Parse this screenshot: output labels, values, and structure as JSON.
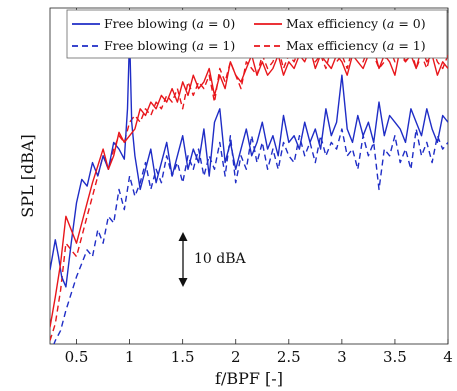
{
  "chart_data": {
    "type": "line",
    "xlabel": "f/BPF [-]",
    "ylabel": "SPL [dBA]",
    "xlim": [
      0.25,
      4.0
    ],
    "ylim": [
      0,
      100
    ],
    "xticks": [
      "0.5",
      "1",
      "1.5",
      "2",
      "2.5",
      "3",
      "3.5",
      "4"
    ],
    "grid": false,
    "legend_position": "top",
    "annotation": "10 dBA",
    "series": [
      {
        "name": "Free blowing (a = 0)",
        "label_prefix": "Free blowing (",
        "label_var": "a",
        "label_suffix": " = 0)",
        "color": "#1f2dc6",
        "dash": "solid",
        "x": [
          0.25,
          0.3,
          0.33,
          0.36,
          0.4,
          0.45,
          0.5,
          0.55,
          0.6,
          0.65,
          0.7,
          0.75,
          0.8,
          0.85,
          0.9,
          0.95,
          0.98,
          1.0,
          1.02,
          1.05,
          1.1,
          1.15,
          1.2,
          1.25,
          1.3,
          1.35,
          1.4,
          1.45,
          1.5,
          1.55,
          1.6,
          1.65,
          1.7,
          1.75,
          1.8,
          1.85,
          1.9,
          1.95,
          2.0,
          2.05,
          2.1,
          2.15,
          2.2,
          2.25,
          2.3,
          2.35,
          2.4,
          2.45,
          2.5,
          2.55,
          2.6,
          2.65,
          2.7,
          2.75,
          2.8,
          2.85,
          2.9,
          2.95,
          3.0,
          3.05,
          3.1,
          3.15,
          3.2,
          3.25,
          3.3,
          3.35,
          3.4,
          3.45,
          3.5,
          3.55,
          3.6,
          3.65,
          3.7,
          3.75,
          3.8,
          3.85,
          3.9,
          3.95,
          4.0
        ],
        "y": [
          22,
          31,
          26,
          20,
          17,
          30,
          42,
          49,
          47,
          54,
          50,
          56,
          52,
          60,
          58,
          55,
          70,
          92,
          66,
          56,
          46,
          52,
          58,
          48,
          54,
          60,
          50,
          56,
          62,
          52,
          58,
          54,
          64,
          50,
          66,
          70,
          54,
          60,
          52,
          58,
          64,
          56,
          60,
          66,
          58,
          62,
          56,
          68,
          60,
          62,
          58,
          66,
          60,
          64,
          58,
          70,
          62,
          66,
          80,
          64,
          60,
          68,
          62,
          66,
          60,
          72,
          62,
          68,
          66,
          64,
          60,
          70,
          66,
          62,
          70,
          64,
          60,
          68,
          66
        ]
      },
      {
        "name": "Max efficiency (a = 0)",
        "label_prefix": "Max efficiency (",
        "label_var": "a",
        "label_suffix": " = 0)",
        "color": "#e8161b",
        "dash": "solid",
        "x": [
          0.25,
          0.3,
          0.35,
          0.4,
          0.45,
          0.5,
          0.55,
          0.6,
          0.65,
          0.7,
          0.75,
          0.8,
          0.85,
          0.9,
          0.95,
          1.0,
          1.05,
          1.1,
          1.15,
          1.2,
          1.25,
          1.3,
          1.35,
          1.4,
          1.45,
          1.5,
          1.55,
          1.6,
          1.65,
          1.7,
          1.75,
          1.8,
          1.85,
          1.9,
          1.95,
          2.0,
          2.05,
          2.1,
          2.15,
          2.2,
          2.25,
          2.3,
          2.35,
          2.4,
          2.45,
          2.5,
          2.55,
          2.6,
          2.65,
          2.7,
          2.75,
          2.8,
          2.85,
          2.9,
          2.95,
          3.0,
          3.05,
          3.1,
          3.15,
          3.2,
          3.25,
          3.3,
          3.35,
          3.4,
          3.45,
          3.5,
          3.55,
          3.6,
          3.65,
          3.7,
          3.75,
          3.8,
          3.85,
          3.9,
          3.95,
          4.0
        ],
        "y": [
          5,
          14,
          24,
          38,
          34,
          30,
          36,
          42,
          48,
          53,
          58,
          52,
          56,
          63,
          60,
          62,
          64,
          70,
          68,
          72,
          70,
          74,
          72,
          76,
          72,
          78,
          74,
          80,
          76,
          78,
          82,
          74,
          80,
          76,
          84,
          80,
          78,
          82,
          86,
          80,
          84,
          80,
          82,
          86,
          80,
          84,
          82,
          86,
          84,
          88,
          82,
          86,
          84,
          82,
          86,
          84,
          80,
          86,
          84,
          82,
          86,
          88,
          82,
          86,
          84,
          80,
          88,
          84,
          86,
          82,
          88,
          84,
          86,
          80,
          84,
          82
        ]
      },
      {
        "name": "Free blowing (a = 1)",
        "label_prefix": "Free blowing (",
        "label_var": "a",
        "label_suffix": " = 1)",
        "color": "#1f2dc6",
        "dash": "dashed",
        "x": [
          0.25,
          0.3,
          0.35,
          0.4,
          0.45,
          0.5,
          0.55,
          0.6,
          0.65,
          0.7,
          0.75,
          0.8,
          0.85,
          0.9,
          0.95,
          1.0,
          1.05,
          1.1,
          1.15,
          1.2,
          1.25,
          1.3,
          1.35,
          1.4,
          1.45,
          1.5,
          1.55,
          1.6,
          1.65,
          1.7,
          1.75,
          1.8,
          1.85,
          1.9,
          1.95,
          2.0,
          2.05,
          2.1,
          2.15,
          2.2,
          2.25,
          2.3,
          2.35,
          2.4,
          2.45,
          2.5,
          2.55,
          2.6,
          2.65,
          2.7,
          2.75,
          2.8,
          2.85,
          2.9,
          2.95,
          3.0,
          3.05,
          3.1,
          3.15,
          3.2,
          3.25,
          3.3,
          3.35,
          3.4,
          3.45,
          3.5,
          3.55,
          3.6,
          3.65,
          3.7,
          3.75,
          3.8,
          3.85,
          3.9,
          3.95,
          4.0
        ],
        "y": [
          -3,
          1,
          4,
          10,
          15,
          20,
          24,
          28,
          26,
          34,
          30,
          38,
          36,
          46,
          40,
          50,
          44,
          48,
          54,
          46,
          52,
          48,
          56,
          50,
          54,
          48,
          56,
          52,
          58,
          50,
          56,
          52,
          60,
          50,
          62,
          48,
          56,
          52,
          62,
          54,
          60,
          52,
          58,
          52,
          60,
          56,
          54,
          62,
          56,
          60,
          54,
          62,
          56,
          60,
          58,
          64,
          56,
          58,
          52,
          62,
          56,
          60,
          46,
          58,
          56,
          62,
          54,
          58,
          52,
          64,
          56,
          60,
          54,
          62,
          58,
          60
        ]
      },
      {
        "name": "Max efficiency (a = 1)",
        "label_prefix": "Max efficiency (",
        "label_var": "a",
        "label_suffix": " = 1)",
        "color": "#e8161b",
        "dash": "dashed",
        "x": [
          0.25,
          0.3,
          0.35,
          0.4,
          0.45,
          0.5,
          0.55,
          0.6,
          0.65,
          0.7,
          0.75,
          0.8,
          0.85,
          0.9,
          0.95,
          1.0,
          1.05,
          1.1,
          1.15,
          1.2,
          1.25,
          1.3,
          1.35,
          1.4,
          1.45,
          1.5,
          1.55,
          1.6,
          1.65,
          1.7,
          1.75,
          1.8,
          1.85,
          1.9,
          1.95,
          2.0,
          2.05,
          2.1,
          2.15,
          2.2,
          2.25,
          2.3,
          2.35,
          2.4,
          2.45,
          2.5,
          2.55,
          2.6,
          2.65,
          2.7,
          2.75,
          2.8,
          2.85,
          2.9,
          2.95,
          3.0,
          3.05,
          3.1,
          3.15,
          3.2,
          3.25,
          3.3,
          3.35,
          3.4,
          3.45,
          3.5,
          3.55,
          3.6,
          3.65,
          3.7,
          3.75,
          3.8,
          3.85,
          3.9,
          3.95,
          4.0
        ],
        "y": [
          1,
          6,
          16,
          30,
          28,
          26,
          32,
          38,
          44,
          50,
          56,
          52,
          58,
          62,
          60,
          66,
          68,
          66,
          70,
          68,
          72,
          70,
          74,
          72,
          76,
          70,
          78,
          74,
          78,
          76,
          80,
          72,
          82,
          78,
          84,
          80,
          76,
          84,
          82,
          80,
          86,
          82,
          84,
          88,
          82,
          86,
          84,
          88,
          86,
          90,
          84,
          86,
          82,
          88,
          84,
          86,
          82,
          88,
          86,
          84,
          88,
          86,
          82,
          84,
          88,
          84,
          86,
          84,
          88,
          82,
          86,
          82,
          88,
          84,
          82,
          86
        ]
      }
    ]
  }
}
